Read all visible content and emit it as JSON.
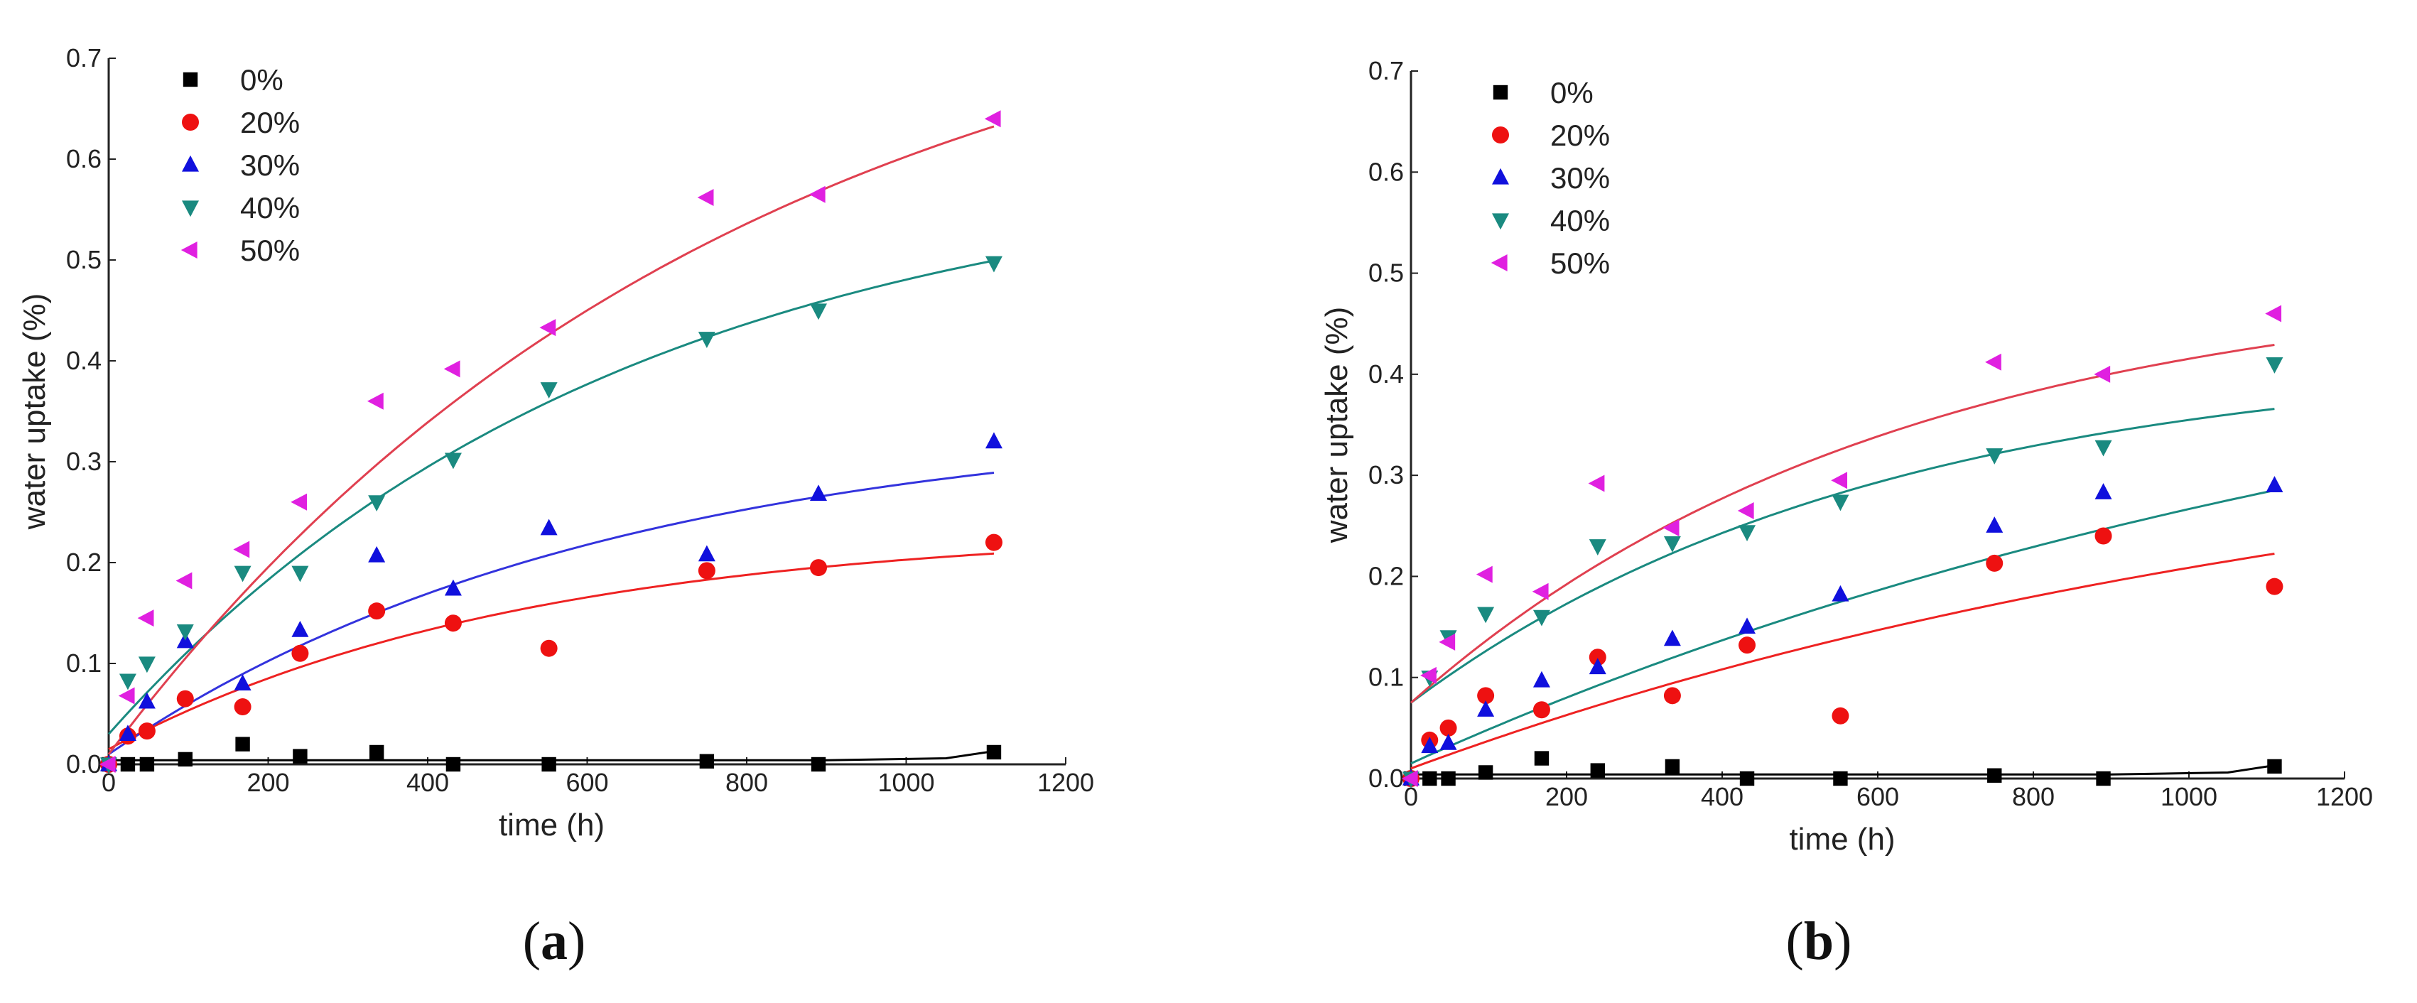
{
  "chart_data": [
    {
      "type": "scatter",
      "panel_label": "(a)",
      "panel_prefix": "(",
      "panel_letter": "a",
      "panel_suffix": ")",
      "xlabel": "time (h)",
      "ylabel": "water uptake (%)",
      "xlim": [
        0,
        1200
      ],
      "ylim": [
        0,
        0.7
      ],
      "xticks": [
        "0",
        "200",
        "400",
        "600",
        "800",
        "1000",
        "1200"
      ],
      "yticks": [
        "0.0",
        "0.1",
        "0.2",
        "0.3",
        "0.4",
        "0.5",
        "0.6",
        "0.7"
      ],
      "legend_position": "top-left",
      "series": [
        {
          "name": "0%",
          "marker": "square",
          "color": "#000000",
          "fit_color": "#000000",
          "x": [
            0,
            24,
            48,
            96,
            168,
            240,
            336,
            432,
            552,
            750,
            890,
            1110
          ],
          "y": [
            0.0,
            0.0,
            0.0,
            0.005,
            0.02,
            0.008,
            0.012,
            0.0,
            0.0,
            0.003,
            0.0,
            0.012
          ],
          "fit": {
            "kind": "poly",
            "points": [
              [
                0,
                0.004
              ],
              [
                300,
                0.004
              ],
              [
                600,
                0.004
              ],
              [
                900,
                0.004
              ],
              [
                1050,
                0.006
              ],
              [
                1110,
                0.013
              ]
            ]
          }
        },
        {
          "name": "20%",
          "marker": "circle",
          "color": "#ee1111",
          "fit_color": "#ee2222",
          "x": [
            0,
            24,
            48,
            96,
            168,
            240,
            336,
            432,
            552,
            750,
            890,
            1110
          ],
          "y": [
            0.0,
            0.028,
            0.033,
            0.065,
            0.057,
            0.11,
            0.152,
            0.14,
            0.115,
            0.192,
            0.195,
            0.22
          ],
          "fit": {
            "kind": "exp",
            "a": 0.235,
            "b": 0.22,
            "tau": 520
          }
        },
        {
          "name": "30%",
          "marker": "triangle-up",
          "color": "#1010dd",
          "fit_color": "#3333dd",
          "x": [
            0,
            24,
            48,
            96,
            168,
            240,
            336,
            432,
            552,
            750,
            890,
            1110
          ],
          "y": [
            0.0,
            0.03,
            0.062,
            0.122,
            0.08,
            0.133,
            0.207,
            0.174,
            0.234,
            0.208,
            0.268,
            0.32
          ],
          "fit": {
            "kind": "exp",
            "a": 0.345,
            "b": 0.335,
            "tau": 620
          }
        },
        {
          "name": "40%",
          "marker": "triangle-down",
          "color": "#1a8a80",
          "fit_color": "#1a8a80",
          "x": [
            0,
            24,
            48,
            96,
            168,
            240,
            336,
            432,
            552,
            750,
            890,
            1110
          ],
          "y": [
            0.0,
            0.083,
            0.1,
            0.132,
            0.19,
            0.19,
            0.26,
            0.302,
            0.372,
            0.422,
            0.45,
            0.497
          ],
          "fit": {
            "kind": "exp",
            "a": 0.6,
            "b": 0.57,
            "tau": 640
          }
        },
        {
          "name": "50%",
          "marker": "triangle-left",
          "color": "#e020e0",
          "fit_color": "#e04050",
          "x": [
            0,
            24,
            48,
            96,
            168,
            240,
            336,
            432,
            552,
            750,
            890,
            1110
          ],
          "y": [
            0.0,
            0.068,
            0.145,
            0.182,
            0.213,
            0.26,
            0.36,
            0.392,
            0.433,
            0.562,
            0.565,
            0.64
          ],
          "fit": {
            "kind": "exp",
            "a": 0.83,
            "b": 0.82,
            "tau": 780
          }
        }
      ]
    },
    {
      "type": "scatter",
      "panel_label": "(b)",
      "panel_prefix": "(",
      "panel_letter": "b",
      "panel_suffix": ")",
      "xlabel": "time (h)",
      "ylabel": "water uptake (%)",
      "xlim": [
        0,
        1200
      ],
      "ylim": [
        0,
        0.7
      ],
      "xticks": [
        "0",
        "200",
        "400",
        "600",
        "800",
        "1000",
        "1200"
      ],
      "yticks": [
        "0.0",
        "0.1",
        "0.2",
        "0.3",
        "0.4",
        "0.5",
        "0.6",
        "0.7"
      ],
      "legend_position": "top-left",
      "series": [
        {
          "name": "0%",
          "marker": "square",
          "color": "#000000",
          "fit_color": "#000000",
          "x": [
            0,
            24,
            48,
            96,
            168,
            240,
            336,
            432,
            552,
            750,
            890,
            1110
          ],
          "y": [
            0.0,
            0.0,
            0.0,
            0.006,
            0.02,
            0.008,
            0.012,
            0.0,
            0.0,
            0.003,
            0.0,
            0.012
          ],
          "fit": {
            "kind": "poly",
            "points": [
              [
                0,
                0.004
              ],
              [
                300,
                0.004
              ],
              [
                600,
                0.004
              ],
              [
                900,
                0.004
              ],
              [
                1050,
                0.006
              ],
              [
                1110,
                0.013
              ]
            ]
          }
        },
        {
          "name": "20%",
          "marker": "circle",
          "color": "#ee1111",
          "fit_color": "#ee2222",
          "x": [
            0,
            24,
            48,
            96,
            168,
            240,
            336,
            432,
            552,
            750,
            890,
            1110
          ],
          "y": [
            0.0,
            0.038,
            0.05,
            0.082,
            0.068,
            0.12,
            0.082,
            0.132,
            0.062,
            0.213,
            0.24,
            0.19
          ],
          "fit": {
            "kind": "exp",
            "a": 0.38,
            "b": 0.37,
            "tau": 1300
          }
        },
        {
          "name": "30%",
          "marker": "triangle-up",
          "color": "#1010dd",
          "fit_color": "#1a8a80",
          "x": [
            0,
            24,
            48,
            96,
            168,
            240,
            336,
            432,
            552,
            750,
            890,
            1110
          ],
          "y": [
            0.0,
            0.032,
            0.035,
            0.068,
            0.097,
            0.11,
            0.138,
            0.15,
            0.182,
            0.25,
            0.283,
            0.29
          ],
          "fit": {
            "kind": "exp",
            "a": 0.52,
            "b": 0.505,
            "tau": 1450
          }
        },
        {
          "name": "40%",
          "marker": "triangle-down",
          "color": "#1a8a80",
          "fit_color": "#1a8a80",
          "x": [
            0,
            24,
            48,
            96,
            168,
            240,
            336,
            432,
            552,
            750,
            890,
            1110
          ],
          "y": [
            0.0,
            0.1,
            0.14,
            0.163,
            0.16,
            0.23,
            0.233,
            0.244,
            0.274,
            0.32,
            0.328,
            0.41
          ],
          "fit": {
            "kind": "exp",
            "a": 0.42,
            "b": 0.345,
            "tau": 600
          }
        },
        {
          "name": "50%",
          "marker": "triangle-left",
          "color": "#e020e0",
          "fit_color": "#e04050",
          "x": [
            0,
            24,
            48,
            96,
            168,
            240,
            336,
            432,
            552,
            750,
            890,
            1110
          ],
          "y": [
            0.0,
            0.102,
            0.135,
            0.202,
            0.185,
            0.292,
            0.248,
            0.265,
            0.295,
            0.412,
            0.4,
            0.46
          ],
          "fit": {
            "kind": "exp",
            "a": 0.5,
            "b": 0.425,
            "tau": 620
          }
        }
      ]
    }
  ]
}
